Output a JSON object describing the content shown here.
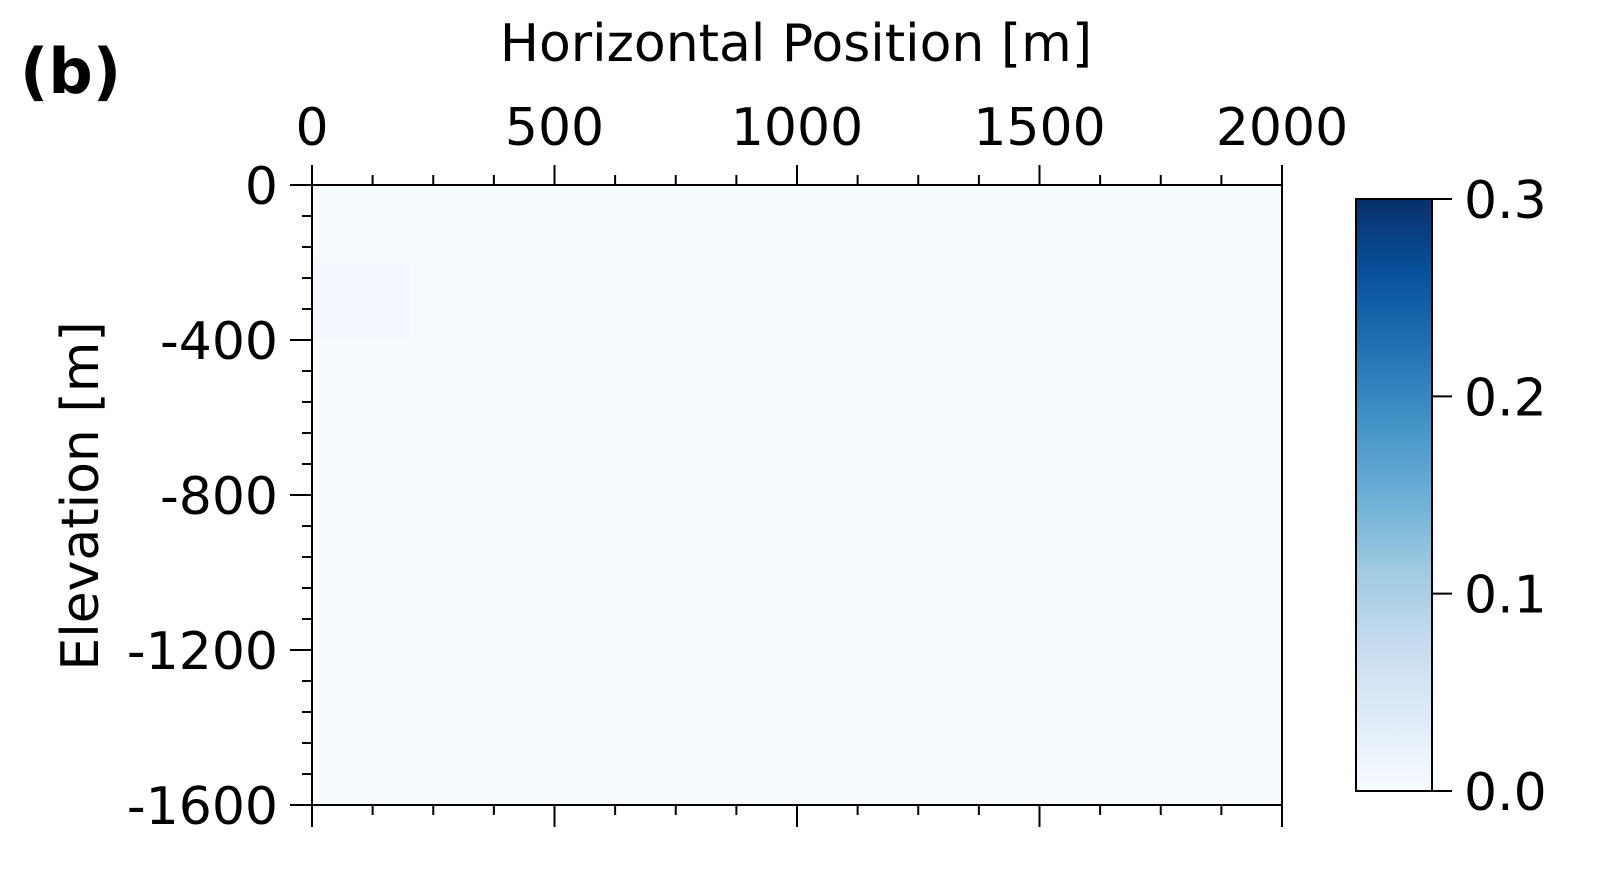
{
  "panel_label": "(b)",
  "chart_data": {
    "type": "heatmap",
    "xlabel": "Horizontal Position [m]",
    "ylabel": "Elevation [m]",
    "x_axis_position": "top",
    "xlim": [
      0,
      2000
    ],
    "ylim": [
      -1600,
      0
    ],
    "x_ticks": [
      0,
      500,
      1000,
      1500,
      2000
    ],
    "x_tick_labels": [
      "0",
      "500",
      "1000",
      "1500",
      "2000"
    ],
    "y_ticks": [
      0,
      -400,
      -800,
      -1200,
      -1600
    ],
    "y_tick_labels": [
      "0",
      "-400",
      "-800",
      "-1200",
      "-1600"
    ],
    "grid": false,
    "background_value": 0.0,
    "cells": [
      {
        "x0": 0,
        "x1": 200,
        "y0": -400,
        "y1": -200,
        "value": 0.006
      }
    ],
    "colorbar": {
      "colormap": "Blues",
      "vmin": 0.0,
      "vmax": 0.3,
      "ticks": [
        0.0,
        0.1,
        0.2,
        0.3
      ],
      "tick_labels": [
        "0.0",
        "0.1",
        "0.2",
        "0.3"
      ],
      "placement": "right"
    }
  }
}
